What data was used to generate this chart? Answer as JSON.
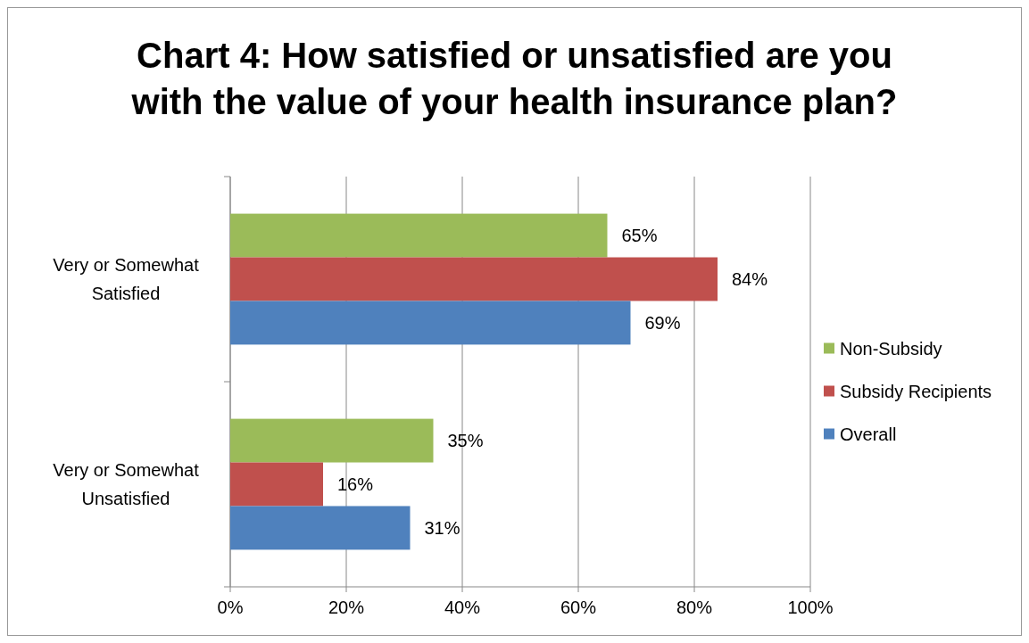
{
  "chart_data": {
    "type": "bar",
    "orientation": "horizontal",
    "title": "Chart 4: How satisfied or unsatisfied are you with the value of your health insurance plan?",
    "categories": [
      "Very or Somewhat Satisfied",
      "Very or Somewhat Unsatisfied"
    ],
    "series": [
      {
        "name": "Non-Subsidy",
        "color": "#9bbb59",
        "values": [
          65,
          35
        ],
        "value_labels": [
          "65%",
          "35%"
        ]
      },
      {
        "name": "Subsidy Recipients",
        "color": "#c0504d",
        "values": [
          84,
          16
        ],
        "value_labels": [
          "84%",
          "16%"
        ]
      },
      {
        "name": "Overall",
        "color": "#4f81bd",
        "values": [
          69,
          31
        ],
        "value_labels": [
          "69%",
          "31%"
        ]
      }
    ],
    "xlim": [
      0,
      100
    ],
    "xticks": [
      {
        "value": 0,
        "label": "0%"
      },
      {
        "value": 20,
        "label": "20%"
      },
      {
        "value": 40,
        "label": "40%"
      },
      {
        "value": 60,
        "label": "60%"
      },
      {
        "value": 80,
        "label": "80%"
      },
      {
        "value": 100,
        "label": "100%"
      }
    ],
    "grid": "x",
    "legend": "right"
  }
}
